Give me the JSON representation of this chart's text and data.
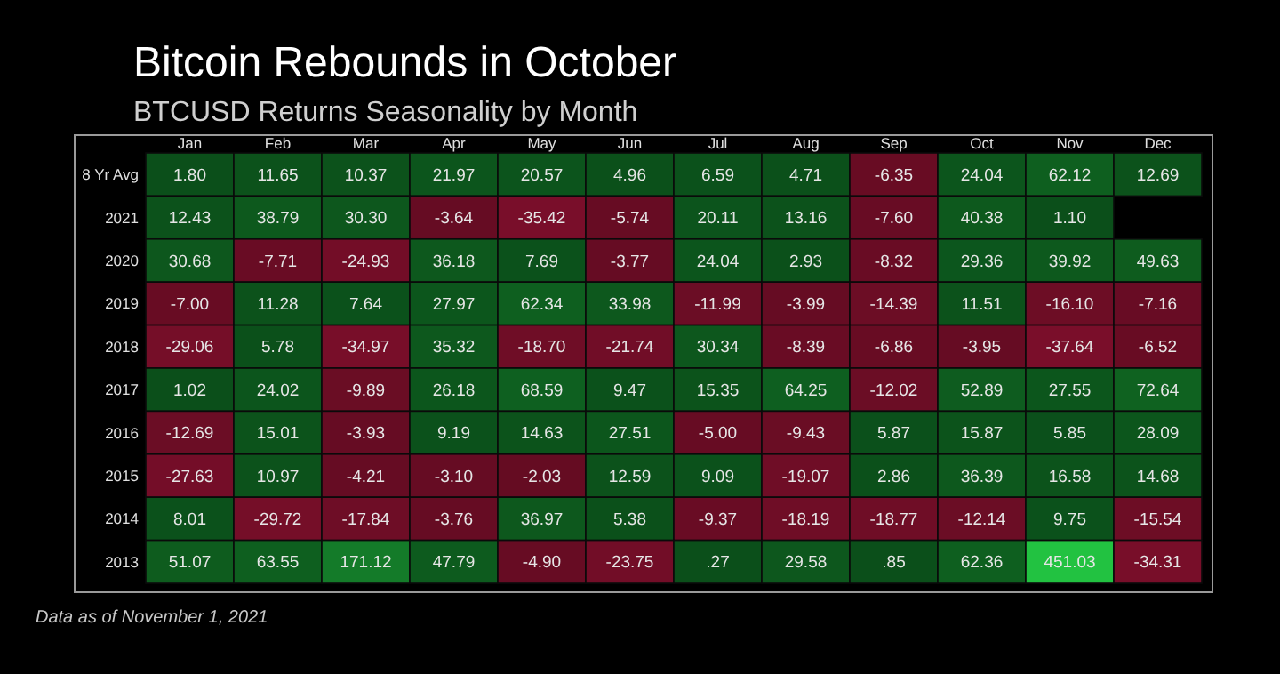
{
  "chart_data": {
    "type": "heatmap",
    "title": "Bitcoin Rebounds in October",
    "subtitle": "BTCUSD Returns Seasonality by Month",
    "categories": [
      "Jan",
      "Feb",
      "Mar",
      "Apr",
      "May",
      "Jun",
      "Jul",
      "Aug",
      "Sep",
      "Oct",
      "Nov",
      "Dec"
    ],
    "y_categories": [
      "8 Yr Avg",
      "2021",
      "2020",
      "2019",
      "2018",
      "2017",
      "2016",
      "2015",
      "2014",
      "2013"
    ],
    "cells": [
      [
        1.8,
        11.65,
        10.37,
        21.97,
        20.57,
        4.96,
        6.59,
        4.71,
        -6.35,
        24.04,
        62.12,
        12.69
      ],
      [
        12.43,
        38.79,
        30.3,
        -3.64,
        -35.42,
        -5.74,
        20.11,
        13.16,
        -7.6,
        40.38,
        1.1,
        null
      ],
      [
        30.68,
        -7.71,
        -24.93,
        36.18,
        7.69,
        -3.77,
        24.04,
        2.93,
        -8.32,
        29.36,
        39.92,
        49.63
      ],
      [
        -7.0,
        11.28,
        7.64,
        27.97,
        62.34,
        33.98,
        -11.99,
        -3.99,
        -14.39,
        11.51,
        -16.1,
        -7.16
      ],
      [
        -29.06,
        5.78,
        -34.97,
        35.32,
        -18.7,
        -21.74,
        30.34,
        -8.39,
        -6.86,
        -3.95,
        -37.64,
        -6.52
      ],
      [
        1.02,
        24.02,
        -9.89,
        26.18,
        68.59,
        9.47,
        15.35,
        64.25,
        -12.02,
        52.89,
        27.55,
        72.64
      ],
      [
        -12.69,
        15.01,
        -3.93,
        9.19,
        14.63,
        27.51,
        -5.0,
        -9.43,
        5.87,
        15.87,
        5.85,
        28.09
      ],
      [
        -27.63,
        10.97,
        -4.21,
        -3.1,
        -2.03,
        12.59,
        9.09,
        -19.07,
        2.86,
        36.39,
        16.58,
        14.68
      ],
      [
        8.01,
        -29.72,
        -17.84,
        -3.76,
        36.97,
        5.38,
        -9.37,
        -18.19,
        -18.77,
        -12.14,
        9.75,
        -15.54
      ],
      [
        51.07,
        63.55,
        171.12,
        47.79,
        -4.9,
        -23.75,
        0.27,
        29.58,
        0.85,
        62.36,
        451.03,
        -34.31
      ]
    ],
    "cell_labels": [
      [
        "1.80",
        "11.65",
        "10.37",
        "21.97",
        "20.57",
        "4.96",
        "6.59",
        "4.71",
        "-6.35",
        "24.04",
        "62.12",
        "12.69"
      ],
      [
        "12.43",
        "38.79",
        "30.30",
        "-3.64",
        "-35.42",
        "-5.74",
        "20.11",
        "13.16",
        "-7.60",
        "40.38",
        "1.10",
        null
      ],
      [
        "30.68",
        "-7.71",
        "-24.93",
        "36.18",
        "7.69",
        "-3.77",
        "24.04",
        "2.93",
        "-8.32",
        "29.36",
        "39.92",
        "49.63"
      ],
      [
        "-7.00",
        "11.28",
        "7.64",
        "27.97",
        "62.34",
        "33.98",
        "-11.99",
        "-3.99",
        "-14.39",
        "11.51",
        "-16.10",
        "-7.16"
      ],
      [
        "-29.06",
        "5.78",
        "-34.97",
        "35.32",
        "-18.70",
        "-21.74",
        "30.34",
        "-8.39",
        "-6.86",
        "-3.95",
        "-37.64",
        "-6.52"
      ],
      [
        "1.02",
        "24.02",
        "-9.89",
        "26.18",
        "68.59",
        "9.47",
        "15.35",
        "64.25",
        "-12.02",
        "52.89",
        "27.55",
        "72.64"
      ],
      [
        "-12.69",
        "15.01",
        "-3.93",
        "9.19",
        "14.63",
        "27.51",
        "-5.00",
        "-9.43",
        "5.87",
        "15.87",
        "5.85",
        "28.09"
      ],
      [
        "-27.63",
        "10.97",
        "-4.21",
        "-3.10",
        "-2.03",
        "12.59",
        "9.09",
        "-19.07",
        "2.86",
        "36.39",
        "16.58",
        "14.68"
      ],
      [
        "8.01",
        "-29.72",
        "-17.84",
        "-3.76",
        "36.97",
        "5.38",
        "-9.37",
        "-18.19",
        "-18.77",
        "-12.14",
        "9.75",
        "-15.54"
      ],
      [
        "51.07",
        "63.55",
        "171.12",
        "47.79",
        "-4.90",
        "-23.75",
        ".27",
        "29.58",
        ".85",
        "62.36",
        "451.03",
        "-34.31"
      ]
    ],
    "annotations": [
      "Data as of November 1, 2021"
    ]
  }
}
